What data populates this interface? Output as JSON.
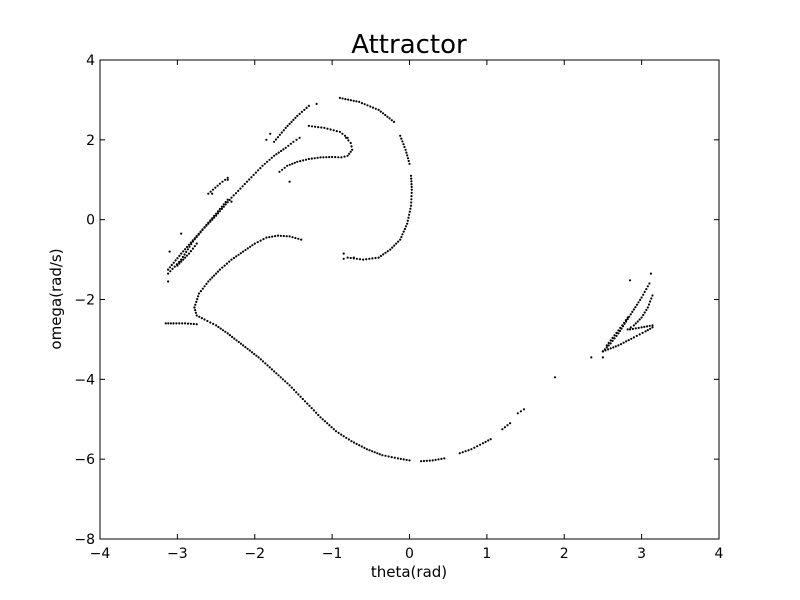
{
  "chart_data": {
    "type": "scatter",
    "title": "Attractor",
    "xlabel": "theta(rad)",
    "ylabel": "omega(rad/s)",
    "xlim": [
      -4,
      4
    ],
    "ylim": [
      -8,
      4
    ],
    "xticks": [
      -4,
      -3,
      -2,
      -1,
      0,
      1,
      2,
      3,
      4
    ],
    "yticks": [
      -8,
      -6,
      -4,
      -2,
      0,
      2,
      4
    ],
    "xtick_labels": [
      "−4",
      "−3",
      "−2",
      "−1",
      "0",
      "1",
      "2",
      "3",
      "4"
    ],
    "ytick_labels": [
      "−8",
      "−6",
      "−4",
      "−2",
      "0",
      "2",
      "4"
    ],
    "grid": false,
    "marker_color": "#000000",
    "segments": [
      [
        [
          -3.12,
          -1.35
        ],
        [
          -2.95,
          -1.0
        ],
        [
          -2.8,
          -0.55
        ],
        [
          -2.65,
          -0.2
        ],
        [
          -2.5,
          0.1
        ],
        [
          -2.3,
          0.55
        ],
        [
          -2.1,
          0.95
        ],
        [
          -1.9,
          1.35
        ],
        [
          -1.75,
          1.6
        ],
        [
          -1.6,
          1.8
        ],
        [
          -1.5,
          1.95
        ],
        [
          -1.42,
          2.05
        ]
      ],
      [
        [
          -1.68,
          1.2
        ],
        [
          -1.58,
          1.35
        ],
        [
          -1.45,
          1.45
        ],
        [
          -1.3,
          1.52
        ],
        [
          -1.15,
          1.56
        ],
        [
          -1.0,
          1.57
        ],
        [
          -0.88,
          1.56
        ],
        [
          -0.8,
          1.6
        ],
        [
          -0.74,
          1.75
        ],
        [
          -0.76,
          1.92
        ],
        [
          -0.82,
          2.05
        ]
      ],
      [
        [
          -3.12,
          -1.25
        ],
        [
          -2.95,
          -0.85
        ],
        [
          -2.7,
          -0.3
        ],
        [
          -2.5,
          0.15
        ],
        [
          -2.35,
          0.5
        ]
      ],
      [
        [
          -3.0,
          -1.15
        ],
        [
          -2.85,
          -0.85
        ],
        [
          -2.75,
          -0.6
        ]
      ],
      [
        [
          -0.8,
          -0.95
        ],
        [
          -0.6,
          -1.0
        ],
        [
          -0.4,
          -0.95
        ],
        [
          -0.25,
          -0.75
        ],
        [
          -0.12,
          -0.5
        ],
        [
          -0.03,
          -0.1
        ],
        [
          0.02,
          0.35
        ],
        [
          0.03,
          0.75
        ],
        [
          0.02,
          1.1
        ]
      ],
      [
        [
          -0.12,
          2.1
        ],
        [
          -0.05,
          1.75
        ],
        [
          0.0,
          1.4
        ]
      ],
      [
        [
          -0.9,
          3.05
        ],
        [
          -0.65,
          2.95
        ],
        [
          -0.4,
          2.75
        ],
        [
          -0.2,
          2.45
        ]
      ],
      [
        [
          -1.75,
          1.95
        ],
        [
          -1.6,
          2.3
        ],
        [
          -1.45,
          2.6
        ],
        [
          -1.3,
          2.85
        ]
      ],
      [
        [
          -1.3,
          2.35
        ],
        [
          -1.1,
          2.3
        ],
        [
          -0.9,
          2.2
        ],
        [
          -0.8,
          2.05
        ]
      ],
      [
        [
          -2.6,
          0.65
        ],
        [
          -2.45,
          0.9
        ],
        [
          -2.35,
          1.05
        ]
      ],
      [
        [
          -2.78,
          -2.2
        ],
        [
          -2.72,
          -1.85
        ],
        [
          -2.6,
          -1.55
        ],
        [
          -2.45,
          -1.25
        ],
        [
          -2.3,
          -1.0
        ],
        [
          -2.15,
          -0.8
        ],
        [
          -2.0,
          -0.6
        ],
        [
          -1.85,
          -0.45
        ],
        [
          -1.7,
          -0.4
        ],
        [
          -1.55,
          -0.42
        ],
        [
          -1.4,
          -0.5
        ]
      ],
      [
        [
          -2.78,
          -2.2
        ],
        [
          -2.75,
          -2.4
        ],
        [
          -2.65,
          -2.5
        ],
        [
          -2.5,
          -2.65
        ],
        [
          -2.35,
          -2.85
        ],
        [
          -2.15,
          -3.15
        ],
        [
          -1.95,
          -3.45
        ],
        [
          -1.75,
          -3.8
        ],
        [
          -1.55,
          -4.15
        ],
        [
          -1.35,
          -4.55
        ],
        [
          -1.15,
          -4.95
        ],
        [
          -0.95,
          -5.3
        ],
        [
          -0.75,
          -5.55
        ],
        [
          -0.55,
          -5.75
        ],
        [
          -0.35,
          -5.9
        ],
        [
          -0.15,
          -5.98
        ],
        [
          0.0,
          -6.03
        ]
      ],
      [
        [
          -3.15,
          -2.6
        ],
        [
          -3.05,
          -2.6
        ],
        [
          -2.9,
          -2.6
        ],
        [
          -2.75,
          -2.62
        ]
      ],
      [
        [
          0.15,
          -6.05
        ],
        [
          0.3,
          -6.03
        ],
        [
          0.45,
          -5.98
        ]
      ],
      [
        [
          0.65,
          -5.85
        ],
        [
          0.8,
          -5.75
        ],
        [
          0.95,
          -5.6
        ],
        [
          1.05,
          -5.5
        ]
      ],
      [
        [
          1.2,
          -5.25
        ],
        [
          1.3,
          -5.1
        ]
      ],
      [
        [
          1.4,
          -4.85
        ],
        [
          1.48,
          -4.75
        ]
      ],
      [
        [
          2.5,
          -3.3
        ],
        [
          2.6,
          -3.1
        ],
        [
          2.7,
          -2.85
        ],
        [
          2.8,
          -2.55
        ],
        [
          2.9,
          -2.25
        ],
        [
          3.0,
          -1.95
        ],
        [
          3.1,
          -1.6
        ]
      ],
      [
        [
          2.55,
          -3.15
        ],
        [
          2.65,
          -2.9
        ],
        [
          2.75,
          -2.65
        ],
        [
          2.82,
          -2.45
        ]
      ],
      [
        [
          2.82,
          -2.75
        ],
        [
          2.9,
          -2.65
        ],
        [
          3.0,
          -2.45
        ],
        [
          3.08,
          -2.2
        ],
        [
          3.14,
          -1.9
        ]
      ],
      [
        [
          2.5,
          -3.3
        ],
        [
          2.7,
          -3.15
        ],
        [
          2.9,
          -2.95
        ],
        [
          3.05,
          -2.8
        ],
        [
          3.14,
          -2.7
        ]
      ],
      [
        [
          2.85,
          -2.75
        ],
        [
          3.0,
          -2.7
        ],
        [
          3.14,
          -2.65
        ]
      ]
    ],
    "points": [
      [
        -3.1,
        -0.8
      ],
      [
        -3.12,
        -1.55
      ],
      [
        -2.95,
        -0.35
      ],
      [
        -2.55,
        0.65
      ],
      [
        -2.3,
        0.45
      ],
      [
        -2.35,
        1.0
      ],
      [
        -1.8,
        2.15
      ],
      [
        -1.85,
        2.0
      ],
      [
        -1.55,
        0.95
      ],
      [
        -1.2,
        2.9
      ],
      [
        -0.85,
        -0.85
      ],
      [
        -0.85,
        -0.98
      ],
      [
        -0.72,
        -0.95
      ],
      [
        1.88,
        -3.95
      ],
      [
        2.35,
        -3.45
      ],
      [
        2.5,
        -3.45
      ],
      [
        2.85,
        -1.52
      ],
      [
        3.12,
        -1.35
      ]
    ]
  }
}
